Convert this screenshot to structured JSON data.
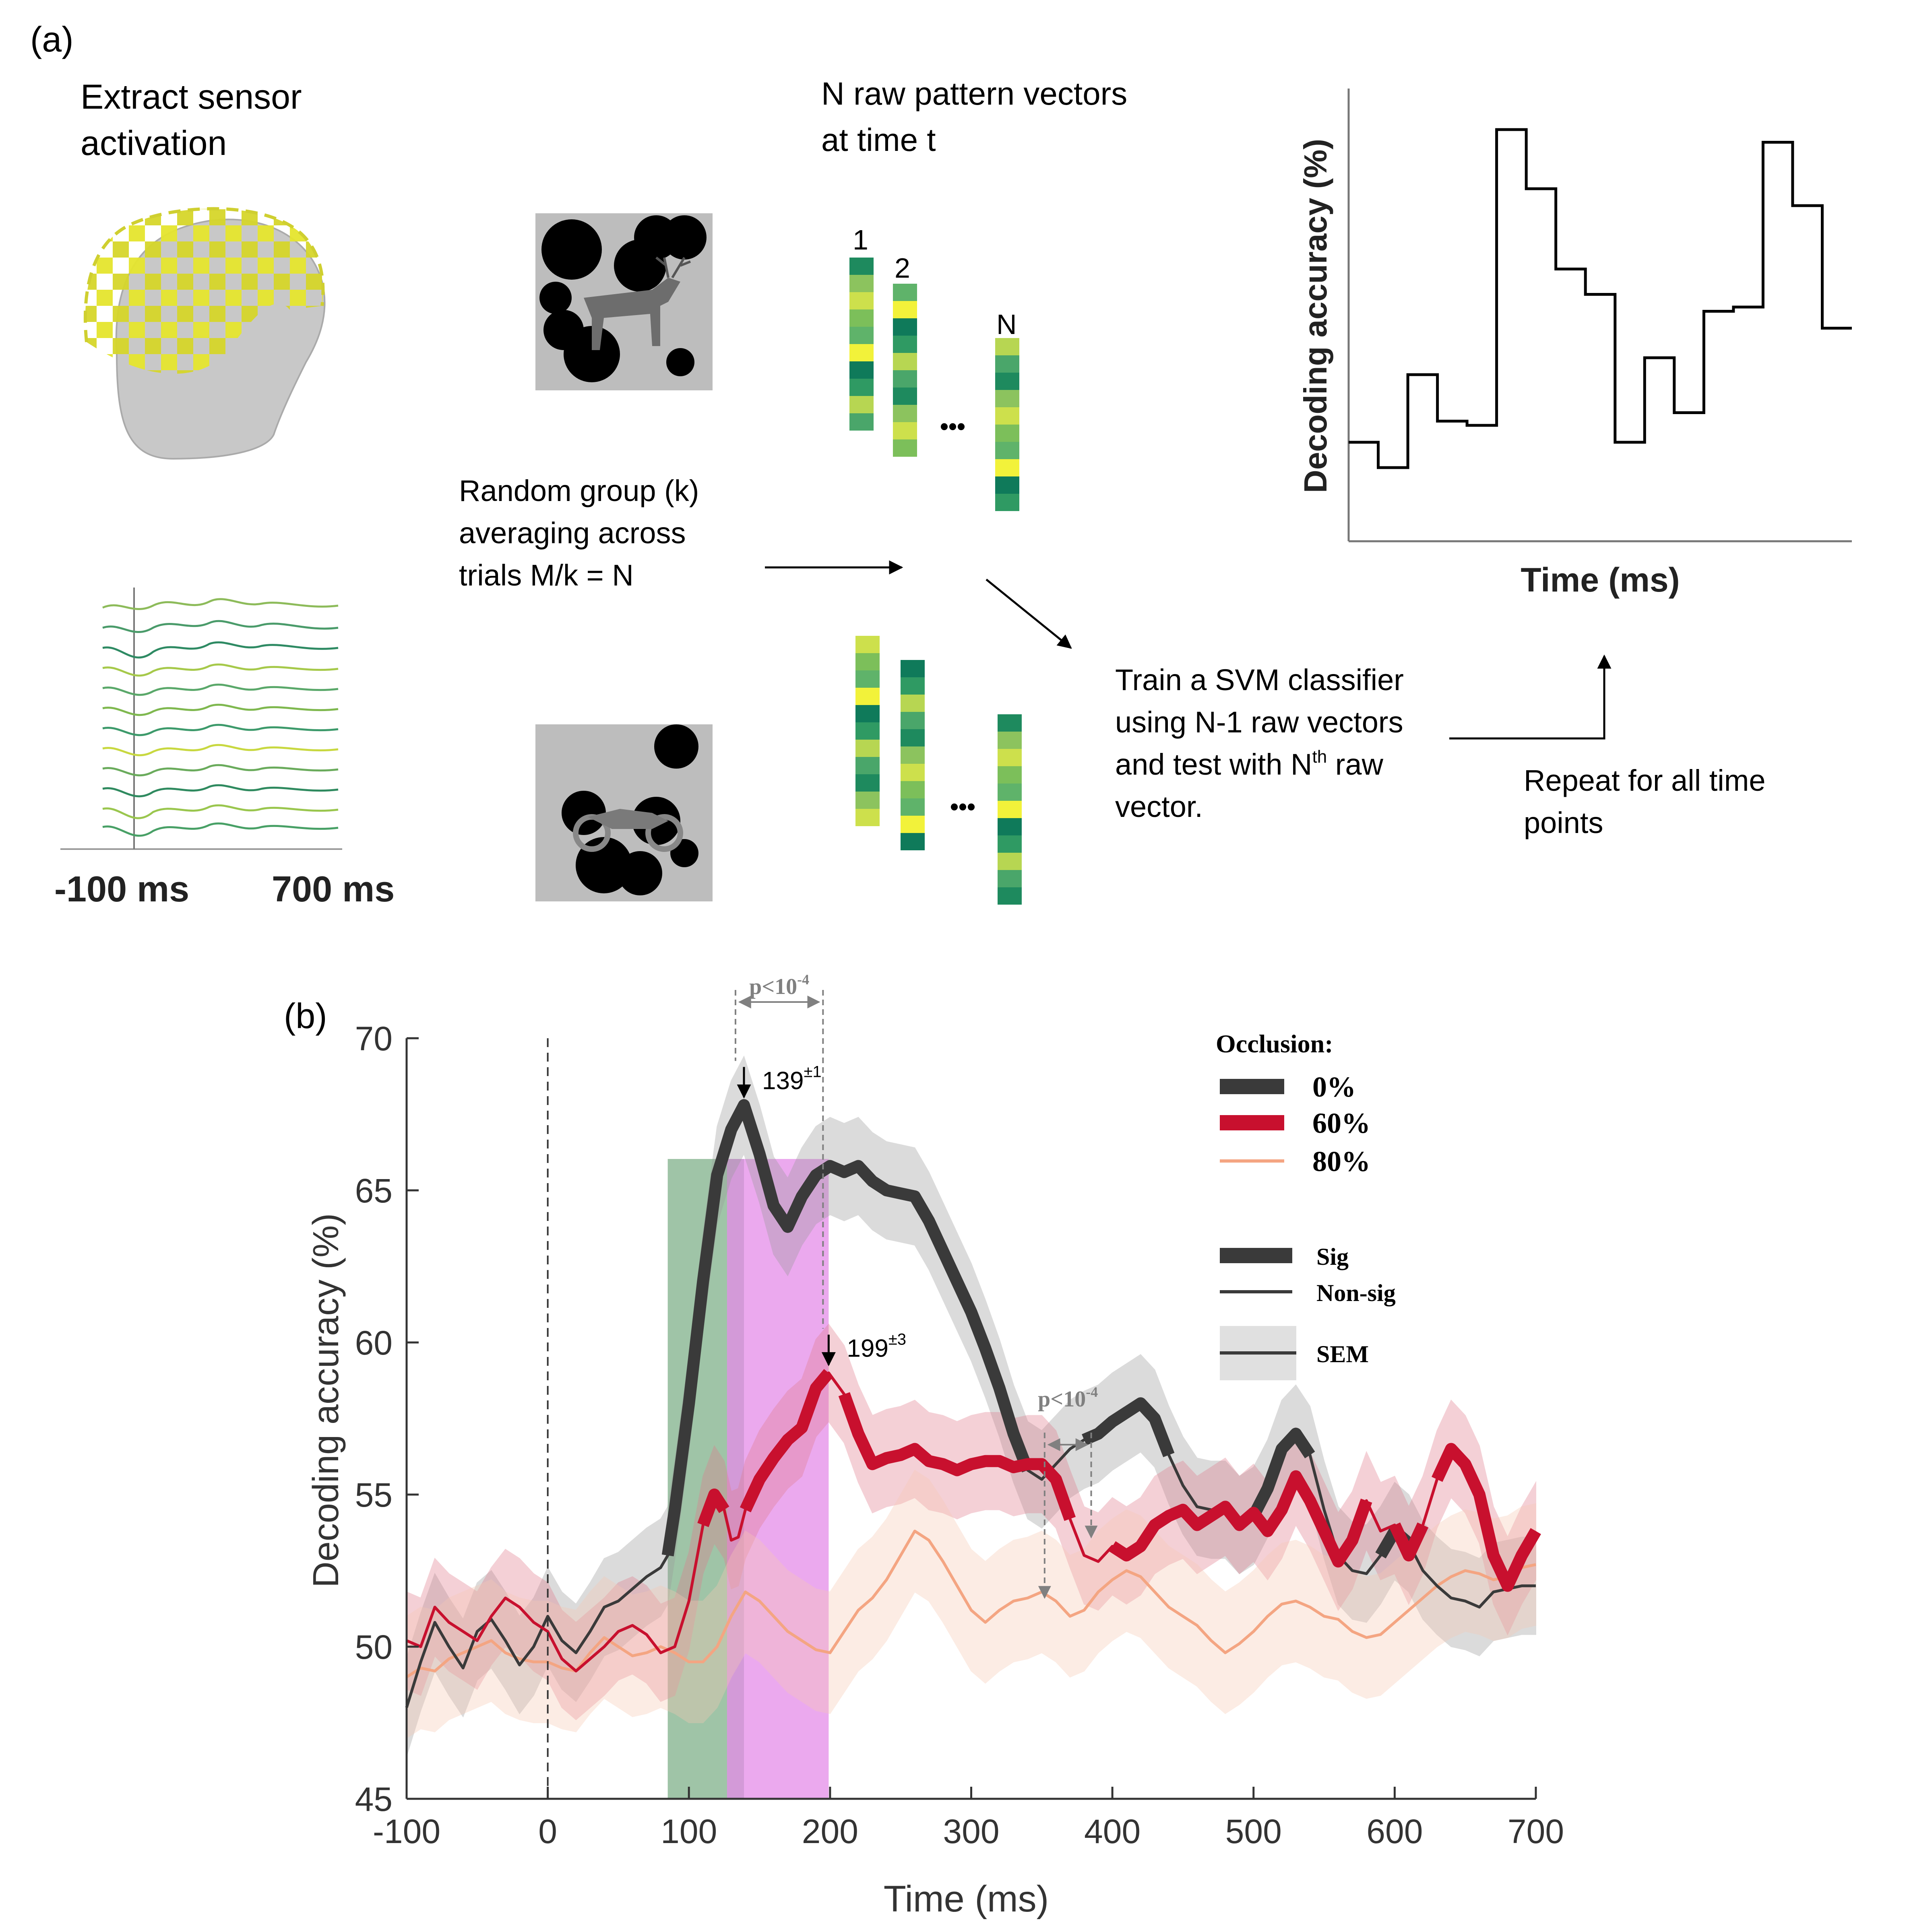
{
  "panel_a": {
    "label": "(a)",
    "extract_label_line1": "Extract sensor",
    "extract_label_line2": "activation",
    "time_start": "-100 ms",
    "time_end": "700 ms",
    "grouping_line1": "Random group (k)",
    "grouping_line2": "averaging across",
    "grouping_line3": "trials M/k = N",
    "vectors_line1": "N raw pattern vectors",
    "vectors_line2": "at time t",
    "vector_labels": [
      "1",
      "2",
      "N"
    ],
    "ellipsis": "•••",
    "svm_line1": "Train a SVM classifier",
    "svm_line2": "using N-1 raw vectors",
    "svm_line3_pre": "and test with N",
    "svm_line3_sup": "th",
    "svm_line3_post": " raw",
    "svm_line4": "vector.",
    "repeat_line1": "Repeat for all time",
    "repeat_line2": "points",
    "mini_ylabel": "Decoding accuracy (%)",
    "mini_xlabel": "Time (ms)",
    "mini_values": [
      0.22,
      0.16,
      0.38,
      0.27,
      0.26,
      0.96,
      0.82,
      0.63,
      0.57,
      0.22,
      0.42,
      0.29,
      0.53,
      0.54,
      0.93,
      0.78,
      0.49
    ]
  },
  "colors": {
    "occ0": "#3a3a3a",
    "occ60": "#c8102e",
    "occ80": "#f4a582",
    "green_band": "#7fb08a",
    "magenta_band": "#e48ce8",
    "annot_gray": "#808080",
    "sensor_yellow": "#e5e52e",
    "head_gray": "#c8c8c8"
  },
  "panel_b": {
    "label": "(b)",
    "ylabel": "Decoding accuracy (%)",
    "xlabel": "Time (ms)",
    "legend_title": "Occlusion:",
    "legend_0": "0%",
    "legend_60": "60%",
    "legend_80": "80%",
    "legend_sig": "Sig",
    "legend_nonsig": "Non-sig",
    "legend_sem": "SEM",
    "peak0_text": "139",
    "peak0_sup": "±1",
    "peak60_text": "199",
    "peak60_sup": "±3",
    "pval_top_text": "p<10",
    "pval_top_sup": "-4",
    "pval_mid_text": "p<10",
    "pval_mid_sup": "-4"
  },
  "chart_data": {
    "type": "line",
    "xlabel": "Time (ms)",
    "ylabel": "Decoding accuracy (%)",
    "xlim": [
      -100,
      700
    ],
    "ylim": [
      45,
      70
    ],
    "xticks": [
      "-100",
      "0",
      "100",
      "200",
      "300",
      "400",
      "500",
      "600",
      "700"
    ],
    "yticks": [
      "45",
      "50",
      "55",
      "60",
      "65",
      "70"
    ],
    "legend_title": "Occlusion:",
    "legend_position": "top-right",
    "onset_marker_x": 0,
    "shaded_windows": [
      {
        "from": 85,
        "to": 139,
        "color": "green"
      },
      {
        "from": 127,
        "to": 199,
        "color": "magenta"
      }
    ],
    "peak_annotations": [
      {
        "series": "0%",
        "x": 139,
        "y": 67.8,
        "text": "139±1"
      },
      {
        "series": "60%",
        "x": 199,
        "y": 59.0,
        "text": "199±3"
      }
    ],
    "significance_brackets": [
      {
        "from": 133,
        "to": 195,
        "text": "p<10-4"
      },
      {
        "from": 352,
        "to": 385,
        "text": "p<10-4"
      }
    ],
    "series": [
      {
        "name": "0%",
        "color": "#3a3a3a",
        "sem": 1.6,
        "points": [
          [
            -100,
            48.0
          ],
          [
            -90,
            49.5
          ],
          [
            -80,
            50.8
          ],
          [
            -70,
            50.0
          ],
          [
            -60,
            49.3
          ],
          [
            -50,
            50.5
          ],
          [
            -40,
            50.9
          ],
          [
            -30,
            50.2
          ],
          [
            -20,
            49.4
          ],
          [
            -10,
            50.0
          ],
          [
            0,
            51.0
          ],
          [
            10,
            50.2
          ],
          [
            20,
            49.8
          ],
          [
            30,
            50.5
          ],
          [
            40,
            51.3
          ],
          [
            50,
            51.5
          ],
          [
            60,
            51.9
          ],
          [
            70,
            52.3
          ],
          [
            80,
            52.6
          ],
          [
            85,
            53.0
          ],
          [
            90,
            54.5
          ],
          [
            100,
            58.0
          ],
          [
            110,
            62.0
          ],
          [
            120,
            65.5
          ],
          [
            130,
            67.0
          ],
          [
            139,
            67.8
          ],
          [
            150,
            66.2
          ],
          [
            160,
            64.5
          ],
          [
            170,
            63.8
          ],
          [
            180,
            64.8
          ],
          [
            190,
            65.5
          ],
          [
            200,
            65.8
          ],
          [
            210,
            65.6
          ],
          [
            220,
            65.8
          ],
          [
            230,
            65.3
          ],
          [
            240,
            65.0
          ],
          [
            250,
            64.9
          ],
          [
            260,
            64.8
          ],
          [
            270,
            64.0
          ],
          [
            280,
            63.0
          ],
          [
            290,
            62.0
          ],
          [
            300,
            61.0
          ],
          [
            310,
            59.8
          ],
          [
            320,
            58.5
          ],
          [
            330,
            57.0
          ],
          [
            340,
            55.8
          ],
          [
            350,
            55.5
          ],
          [
            360,
            56.0
          ],
          [
            370,
            56.5
          ],
          [
            380,
            56.8
          ],
          [
            390,
            57.0
          ],
          [
            400,
            57.4
          ],
          [
            410,
            57.7
          ],
          [
            420,
            58.0
          ],
          [
            430,
            57.5
          ],
          [
            440,
            56.3
          ],
          [
            450,
            55.3
          ],
          [
            460,
            54.6
          ],
          [
            470,
            54.5
          ],
          [
            480,
            54.5
          ],
          [
            490,
            54.0
          ],
          [
            500,
            54.3
          ],
          [
            510,
            55.2
          ],
          [
            520,
            56.5
          ],
          [
            530,
            57.0
          ],
          [
            540,
            56.3
          ],
          [
            550,
            54.5
          ],
          [
            560,
            53.0
          ],
          [
            570,
            52.5
          ],
          [
            580,
            52.4
          ],
          [
            590,
            53.0
          ],
          [
            600,
            53.8
          ],
          [
            610,
            53.4
          ],
          [
            620,
            52.5
          ],
          [
            630,
            52.0
          ],
          [
            640,
            51.6
          ],
          [
            650,
            51.5
          ],
          [
            660,
            51.3
          ],
          [
            670,
            51.8
          ],
          [
            680,
            51.9
          ],
          [
            690,
            52.0
          ],
          [
            700,
            52.0
          ]
        ],
        "sig_ranges": [
          [
            85,
            340
          ],
          [
            380,
            440
          ],
          [
            500,
            545
          ],
          [
            590,
            610
          ]
        ]
      },
      {
        "name": "60%",
        "color": "#c8102e",
        "sem": 1.6,
        "points": [
          [
            -100,
            50.2
          ],
          [
            -90,
            50.0
          ],
          [
            -80,
            51.3
          ],
          [
            -70,
            50.8
          ],
          [
            -60,
            50.5
          ],
          [
            -50,
            50.2
          ],
          [
            -40,
            51.0
          ],
          [
            -30,
            51.6
          ],
          [
            -20,
            51.3
          ],
          [
            -10,
            50.8
          ],
          [
            0,
            50.5
          ],
          [
            10,
            49.6
          ],
          [
            20,
            49.2
          ],
          [
            30,
            49.6
          ],
          [
            40,
            50.0
          ],
          [
            50,
            50.5
          ],
          [
            60,
            50.7
          ],
          [
            70,
            50.4
          ],
          [
            80,
            49.8
          ],
          [
            90,
            50.0
          ],
          [
            100,
            51.5
          ],
          [
            110,
            54.0
          ],
          [
            118,
            55.0
          ],
          [
            125,
            54.5
          ],
          [
            130,
            53.5
          ],
          [
            135,
            53.6
          ],
          [
            140,
            54.5
          ],
          [
            150,
            55.5
          ],
          [
            160,
            56.2
          ],
          [
            170,
            56.8
          ],
          [
            180,
            57.2
          ],
          [
            190,
            58.5
          ],
          [
            199,
            59.0
          ],
          [
            210,
            58.3
          ],
          [
            220,
            57.0
          ],
          [
            230,
            56.0
          ],
          [
            240,
            56.2
          ],
          [
            250,
            56.3
          ],
          [
            260,
            56.5
          ],
          [
            270,
            56.1
          ],
          [
            280,
            56.0
          ],
          [
            290,
            55.8
          ],
          [
            300,
            56.0
          ],
          [
            310,
            56.1
          ],
          [
            320,
            56.1
          ],
          [
            330,
            55.9
          ],
          [
            340,
            56.0
          ],
          [
            350,
            56.0
          ],
          [
            360,
            55.5
          ],
          [
            370,
            54.2
          ],
          [
            380,
            53.0
          ],
          [
            390,
            52.8
          ],
          [
            400,
            53.3
          ],
          [
            410,
            53.0
          ],
          [
            420,
            53.3
          ],
          [
            430,
            54.0
          ],
          [
            440,
            54.3
          ],
          [
            450,
            54.5
          ],
          [
            460,
            54.0
          ],
          [
            470,
            54.3
          ],
          [
            480,
            54.6
          ],
          [
            490,
            54.0
          ],
          [
            500,
            54.4
          ],
          [
            510,
            53.8
          ],
          [
            520,
            54.5
          ],
          [
            530,
            55.6
          ],
          [
            540,
            54.8
          ],
          [
            550,
            53.8
          ],
          [
            560,
            52.8
          ],
          [
            570,
            53.5
          ],
          [
            580,
            54.8
          ],
          [
            590,
            53.8
          ],
          [
            600,
            54.0
          ],
          [
            610,
            53.0
          ],
          [
            620,
            54.0
          ],
          [
            630,
            55.5
          ],
          [
            640,
            56.5
          ],
          [
            650,
            56.0
          ],
          [
            660,
            55.0
          ],
          [
            670,
            53.0
          ],
          [
            680,
            52.0
          ],
          [
            690,
            53.0
          ],
          [
            700,
            53.8
          ]
        ],
        "sig_ranges": [
          [
            110,
            127
          ],
          [
            140,
            200
          ],
          [
            210,
            375
          ],
          [
            400,
            580
          ],
          [
            600,
            620
          ],
          [
            630,
            700
          ]
        ]
      },
      {
        "name": "80%",
        "color": "#f4a582",
        "sem": 2.0,
        "points": [
          [
            -100,
            49.0
          ],
          [
            -90,
            49.3
          ],
          [
            -80,
            49.2
          ],
          [
            -70,
            49.6
          ],
          [
            -60,
            49.8
          ],
          [
            -50,
            50.0
          ],
          [
            -40,
            50.2
          ],
          [
            -30,
            49.8
          ],
          [
            -20,
            49.6
          ],
          [
            -10,
            49.5
          ],
          [
            0,
            49.5
          ],
          [
            10,
            49.3
          ],
          [
            20,
            49.2
          ],
          [
            30,
            49.8
          ],
          [
            40,
            50.3
          ],
          [
            50,
            50.0
          ],
          [
            60,
            49.7
          ],
          [
            70,
            49.8
          ],
          [
            80,
            50.0
          ],
          [
            90,
            49.8
          ],
          [
            100,
            49.5
          ],
          [
            110,
            49.5
          ],
          [
            120,
            50.0
          ],
          [
            130,
            51.0
          ],
          [
            140,
            51.8
          ],
          [
            150,
            51.5
          ],
          [
            160,
            51.0
          ],
          [
            170,
            50.5
          ],
          [
            180,
            50.2
          ],
          [
            190,
            49.9
          ],
          [
            200,
            49.8
          ],
          [
            210,
            50.5
          ],
          [
            220,
            51.2
          ],
          [
            230,
            51.6
          ],
          [
            240,
            52.2
          ],
          [
            250,
            53.0
          ],
          [
            260,
            53.8
          ],
          [
            270,
            53.5
          ],
          [
            280,
            52.8
          ],
          [
            290,
            52.0
          ],
          [
            300,
            51.2
          ],
          [
            310,
            50.8
          ],
          [
            320,
            51.2
          ],
          [
            330,
            51.5
          ],
          [
            340,
            51.6
          ],
          [
            350,
            51.8
          ],
          [
            360,
            51.5
          ],
          [
            370,
            51.0
          ],
          [
            380,
            51.2
          ],
          [
            390,
            51.8
          ],
          [
            400,
            52.2
          ],
          [
            410,
            52.5
          ],
          [
            420,
            52.3
          ],
          [
            430,
            51.8
          ],
          [
            440,
            51.3
          ],
          [
            450,
            51.0
          ],
          [
            460,
            50.7
          ],
          [
            470,
            50.2
          ],
          [
            480,
            49.8
          ],
          [
            490,
            50.1
          ],
          [
            500,
            50.5
          ],
          [
            510,
            51.0
          ],
          [
            520,
            51.4
          ],
          [
            530,
            51.5
          ],
          [
            540,
            51.3
          ],
          [
            550,
            51.0
          ],
          [
            560,
            50.9
          ],
          [
            570,
            50.5
          ],
          [
            580,
            50.3
          ],
          [
            590,
            50.4
          ],
          [
            600,
            50.8
          ],
          [
            610,
            51.2
          ],
          [
            620,
            51.6
          ],
          [
            630,
            52.0
          ],
          [
            640,
            52.3
          ],
          [
            650,
            52.5
          ],
          [
            660,
            52.4
          ],
          [
            670,
            52.2
          ],
          [
            680,
            52.3
          ],
          [
            690,
            52.6
          ],
          [
            700,
            52.7
          ]
        ],
        "sig_ranges": []
      }
    ]
  }
}
